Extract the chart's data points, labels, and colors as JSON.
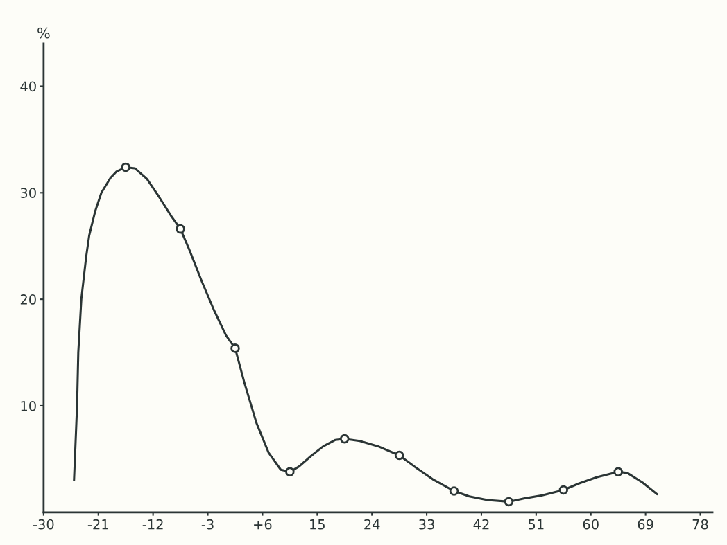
{
  "chart_data": {
    "type": "line",
    "ylabel": "%",
    "xlim": [
      -30,
      80
    ],
    "ylim": [
      0,
      44
    ],
    "xticks": [
      -30,
      -21,
      -12,
      -3,
      {
        "value": 6,
        "label": "+6"
      },
      15,
      24,
      33,
      42,
      51,
      60,
      69,
      78
    ],
    "yticks": [
      10,
      20,
      30,
      40
    ],
    "grid": false,
    "legend": false,
    "series": [
      {
        "color": "#2b3535",
        "marker": "none",
        "line_style": "solid",
        "x": [
          -25,
          -24.5,
          -24.3,
          -23.8,
          -23,
          -22.5,
          -21.5,
          -20.5,
          -19,
          -18,
          -16.5,
          -15,
          -13,
          -11,
          -9,
          -7.5,
          -6,
          -4,
          -2,
          0,
          1.5,
          3,
          5,
          7,
          9,
          10.5,
          12,
          14,
          16,
          18,
          19.5,
          22,
          25,
          28.5,
          31,
          34,
          37.5,
          40,
          43,
          46.5,
          49,
          52,
          55.5,
          58,
          61,
          64.5,
          66,
          68.5,
          70.9
        ],
        "values": [
          3.0,
          10,
          15,
          20,
          24,
          26,
          28.3,
          30,
          31.4,
          32,
          32.4,
          32.3,
          31.3,
          29.6,
          27.8,
          26.6,
          24.6,
          21.7,
          19.0,
          16.6,
          15.4,
          12.2,
          8.4,
          5.6,
          4.0,
          3.8,
          4.3,
          5.3,
          6.2,
          6.8,
          6.9,
          6.7,
          6.2,
          5.35,
          4.3,
          3.1,
          2.0,
          1.5,
          1.15,
          1.0,
          1.3,
          1.6,
          2.1,
          2.7,
          3.3,
          3.8,
          3.7,
          2.8,
          1.7
        ]
      },
      {
        "type": "scatter",
        "color": "#2b3535",
        "marker": "circle",
        "x": [
          -16.5,
          -7.5,
          1.5,
          10.5,
          19.5,
          28.5,
          37.5,
          46.5,
          55.5,
          64.5
        ],
        "values": [
          32.4,
          26.6,
          15.4,
          3.8,
          6.9,
          5.35,
          2.0,
          1.0,
          2.1,
          3.8
        ]
      }
    ]
  }
}
